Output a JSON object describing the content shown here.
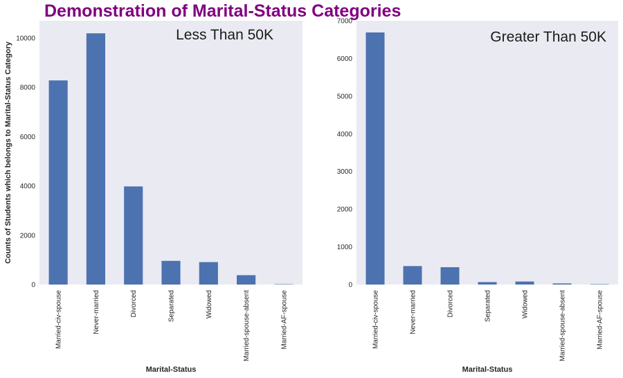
{
  "title": "Demonstration of Marital-Status Categories",
  "colors": {
    "title": "#800080",
    "bar": "#4c72b0",
    "panel_bg": "#eaeaf2"
  },
  "chart_data": [
    {
      "type": "bar",
      "title": "Less Than 50K",
      "xlabel": "Marital-Status",
      "ylabel": "Counts of Students which belongs to Marital-Status Category",
      "categories": [
        "Married-civ-spouse",
        "Never-married",
        "Divorced",
        "Separated",
        "Widowed",
        "Married-spouse-absent",
        "Married-AF-spouse"
      ],
      "values": [
        8280,
        10190,
        3980,
        960,
        910,
        380,
        15
      ],
      "ylim": [
        0,
        10700
      ],
      "yticks": [
        0,
        2000,
        4000,
        6000,
        8000,
        10000
      ],
      "grid": false
    },
    {
      "type": "bar",
      "title": "Greater Than 50K",
      "xlabel": "Marital-Status",
      "ylabel": "",
      "categories": [
        "Married-civ-spouse",
        "Never-married",
        "Divorced",
        "Separated",
        "Widowed",
        "Married-spouse-absent",
        "Married-AF-spouse"
      ],
      "values": [
        6690,
        490,
        460,
        65,
        80,
        30,
        10
      ],
      "ylim": [
        0,
        7000
      ],
      "yticks": [
        0,
        1000,
        2000,
        3000,
        4000,
        5000,
        6000,
        7000
      ],
      "grid": false
    }
  ]
}
